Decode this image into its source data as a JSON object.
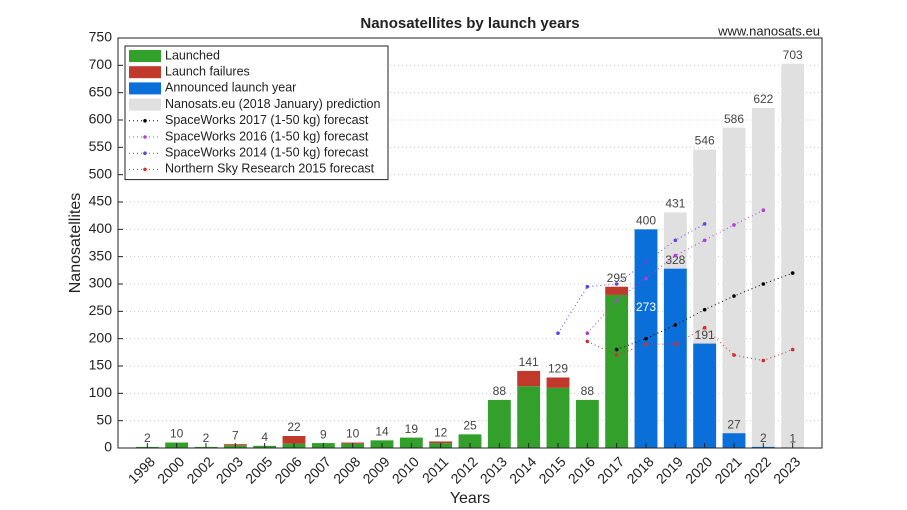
{
  "chart_data": {
    "type": "bar",
    "title": "Nanosatellites by launch years",
    "source": "www.nanosats.eu",
    "x_label": "Years",
    "y_label": "Nanosatellites",
    "categories": [
      "1998",
      "2000",
      "2002",
      "2003",
      "2005",
      "2006",
      "2007",
      "2008",
      "2009",
      "2010",
      "2011",
      "2012",
      "2013",
      "2014",
      "2015",
      "2016",
      "2017",
      "2018",
      "2019",
      "2020",
      "2021",
      "2022",
      "2023"
    ],
    "series": [
      {
        "name": "Launched",
        "color": "#33a02c",
        "kind": "stack",
        "values": [
          2,
          10,
          2,
          5,
          4,
          8,
          9,
          8,
          14,
          19,
          9,
          25,
          88,
          113,
          110,
          88,
          280,
          null,
          null,
          null,
          null,
          null,
          null
        ]
      },
      {
        "name": "Launch failures",
        "color": "#c0392b",
        "kind": "stack",
        "values": [
          0,
          0,
          0,
          2,
          0,
          14,
          0,
          2,
          0,
          0,
          3,
          0,
          0,
          28,
          19,
          0,
          15,
          null,
          null,
          null,
          null,
          null,
          null
        ]
      },
      {
        "name": "Announced launch year",
        "color": "#0b6fd9",
        "kind": "bar",
        "values": [
          null,
          null,
          null,
          null,
          null,
          null,
          null,
          null,
          null,
          null,
          null,
          null,
          null,
          null,
          null,
          null,
          null,
          400,
          328,
          191,
          27,
          2,
          1
        ]
      },
      {
        "name": "Nanosats.eu (2018 January) prediction",
        "color": "#e0e0e0",
        "kind": "back",
        "values": [
          null,
          null,
          null,
          null,
          null,
          null,
          null,
          null,
          null,
          null,
          null,
          null,
          null,
          null,
          null,
          null,
          null,
          273,
          431,
          546,
          586,
          622,
          703
        ]
      },
      {
        "name": "SpaceWorks 2017 (1-50 kg) forecast",
        "color": "#000000",
        "kind": "line",
        "values": [
          null,
          null,
          null,
          null,
          null,
          null,
          null,
          null,
          null,
          null,
          null,
          null,
          null,
          null,
          null,
          null,
          180,
          200,
          225,
          253,
          278,
          300,
          320
        ]
      },
      {
        "name": "SpaceWorks 2016 (1-50 kg) forecast",
        "color": "#b040d8",
        "kind": "line",
        "values": [
          null,
          null,
          null,
          null,
          null,
          null,
          null,
          null,
          null,
          null,
          null,
          null,
          null,
          null,
          null,
          210,
          270,
          310,
          352,
          380,
          408,
          435,
          null
        ]
      },
      {
        "name": "SpaceWorks 2014 (1-50 kg) forecast",
        "color": "#5b48e0",
        "kind": "line",
        "values": [
          null,
          null,
          null,
          null,
          null,
          null,
          null,
          null,
          null,
          null,
          null,
          null,
          null,
          null,
          210,
          295,
          300,
          340,
          380,
          410,
          null,
          null,
          null
        ]
      },
      {
        "name": "Northern Sky Research 2015 forecast",
        "color": "#d03030",
        "kind": "line",
        "values": [
          null,
          null,
          null,
          null,
          null,
          null,
          null,
          null,
          null,
          null,
          null,
          null,
          null,
          null,
          null,
          195,
          170,
          190,
          190,
          220,
          170,
          160,
          180
        ]
      }
    ],
    "data_labels": [
      2,
      10,
      2,
      7,
      4,
      22,
      9,
      10,
      14,
      19,
      12,
      25,
      88,
      141,
      129,
      88,
      295,
      null,
      null,
      null,
      null,
      null,
      null
    ],
    "ylim": [
      0,
      750
    ],
    "yticks": [
      0,
      50,
      100,
      150,
      200,
      250,
      300,
      350,
      400,
      450,
      500,
      550,
      600,
      650,
      700,
      750
    ],
    "grid": true,
    "legend": "northwest"
  }
}
